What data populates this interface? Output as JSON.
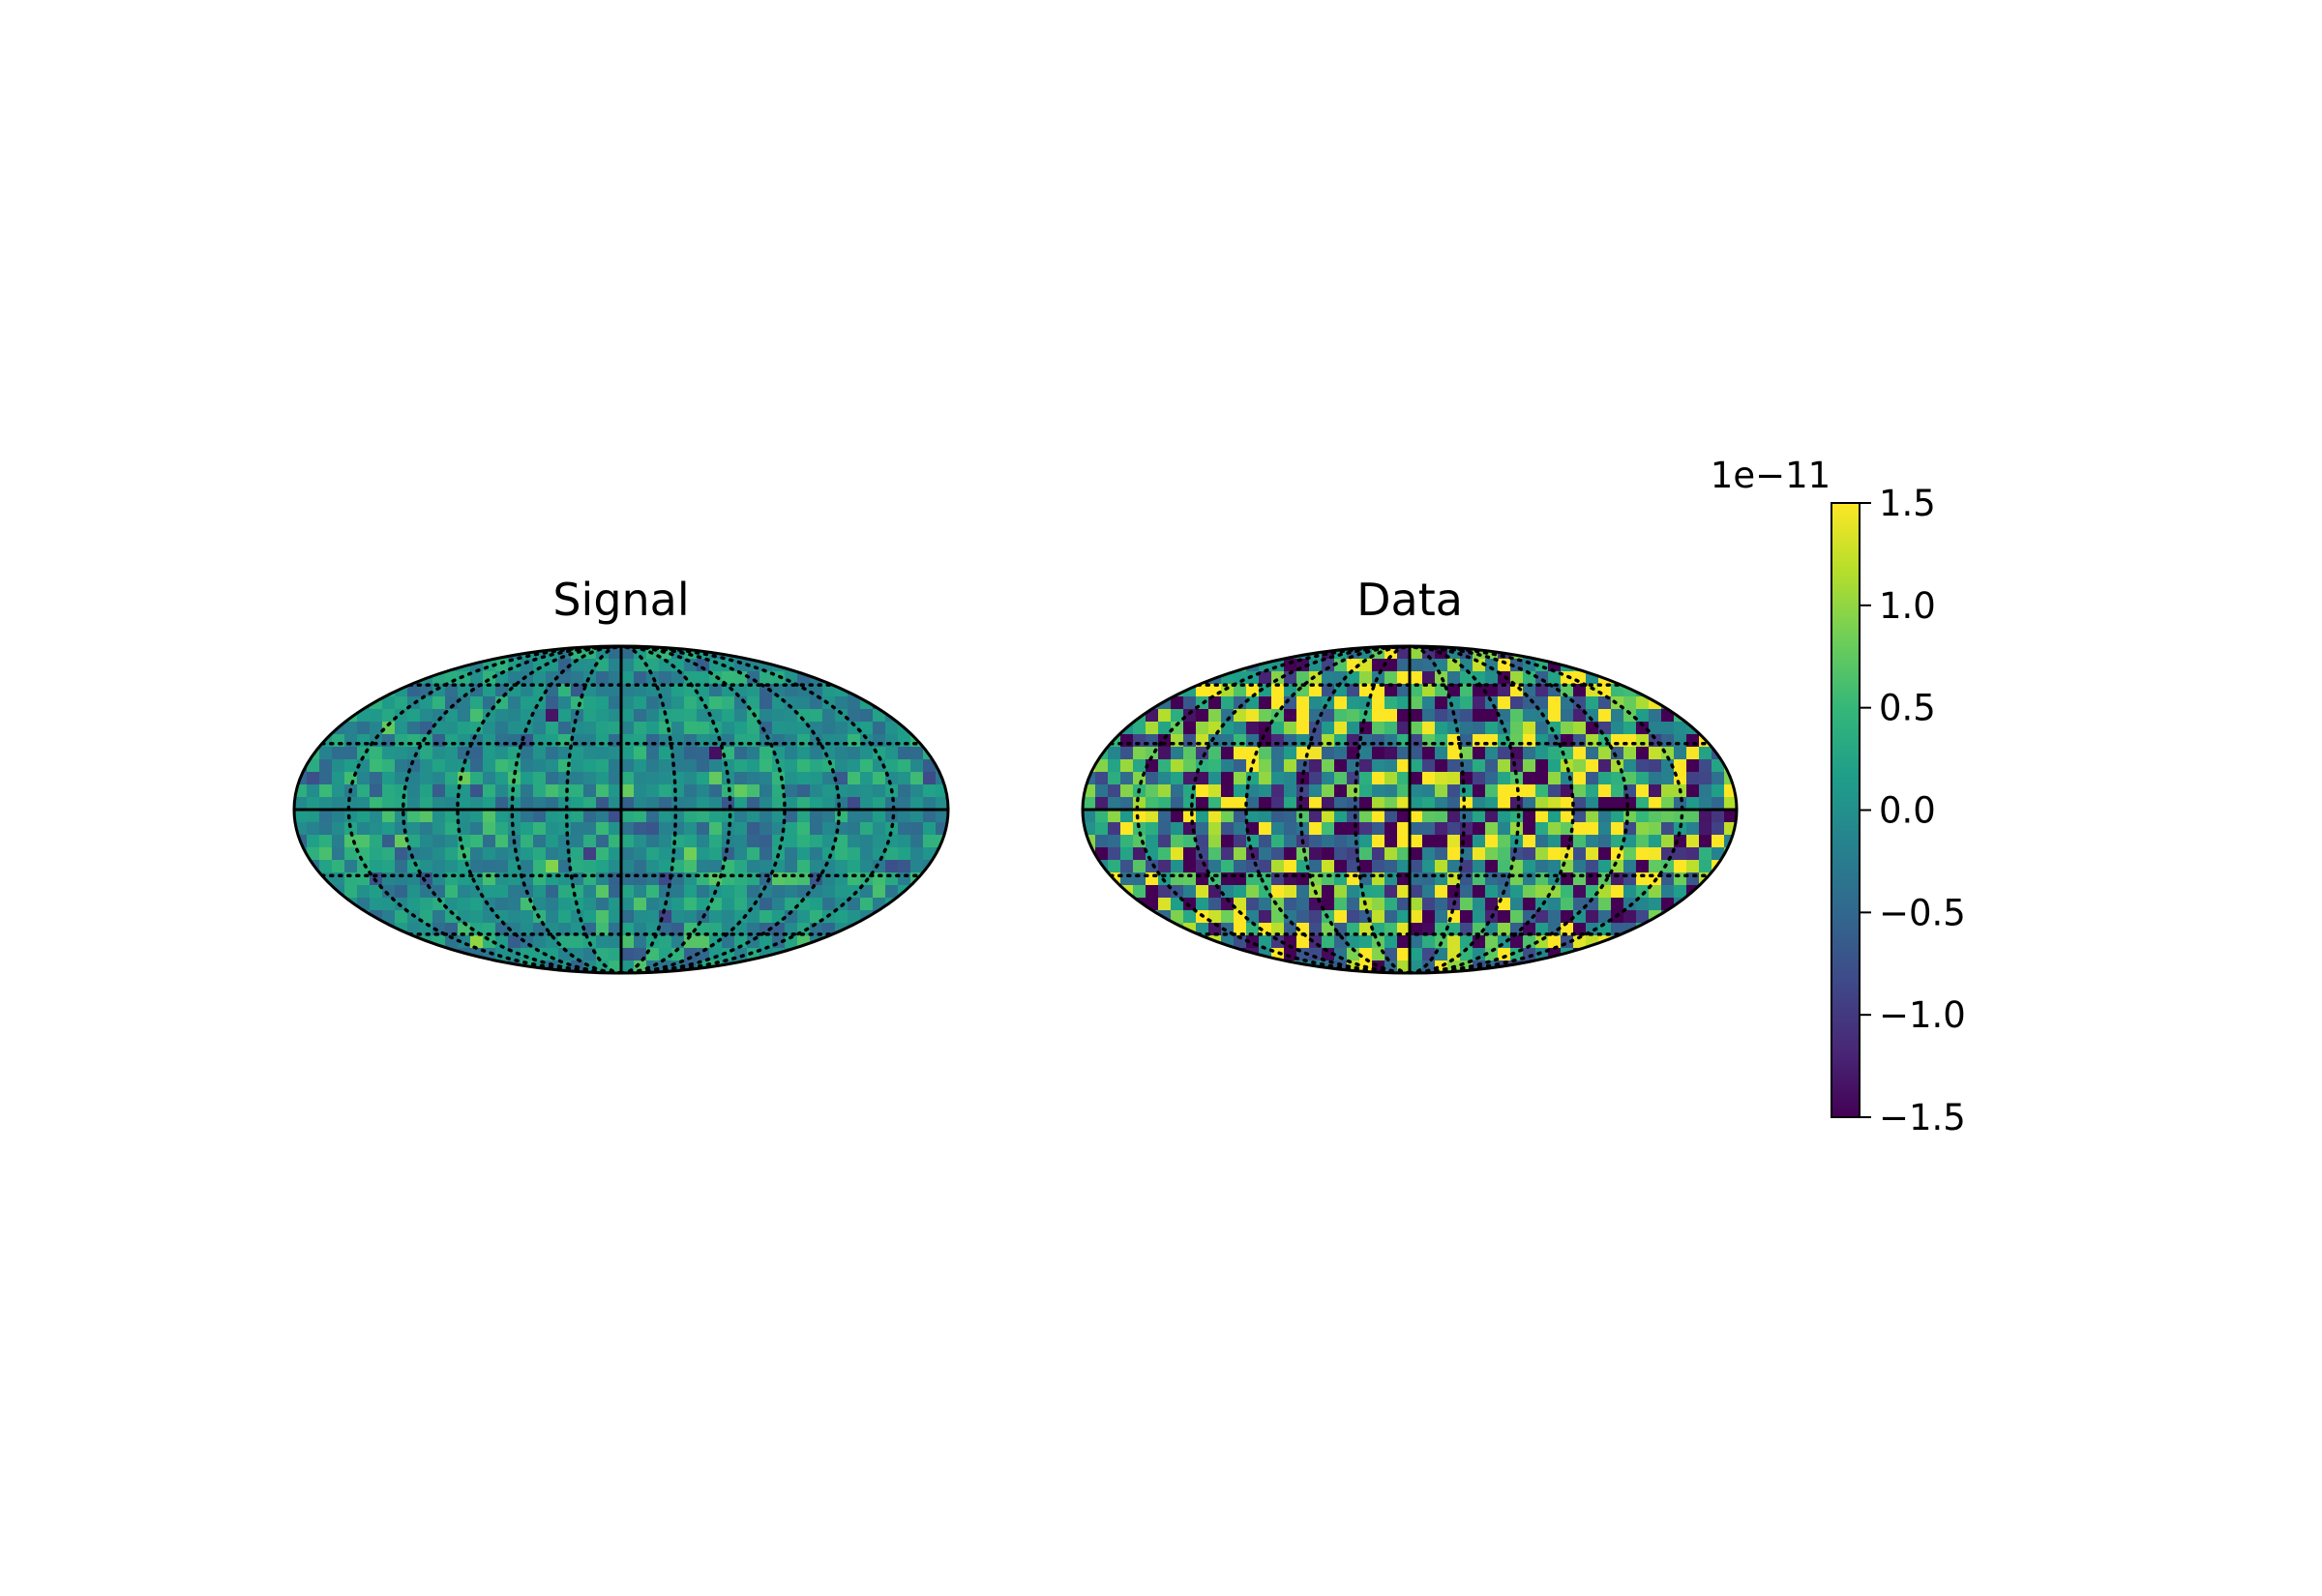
{
  "chart_data": {
    "type": "heatmap",
    "projection": "mollweide",
    "grid": true,
    "colormap": "viridis",
    "colormap_stops": [
      "#440154",
      "#482878",
      "#3e4a89",
      "#31688e",
      "#26828e",
      "#1f9e89",
      "#35b779",
      "#6ece58",
      "#b5de2b",
      "#fde725"
    ],
    "panels": [
      {
        "title": "Signal",
        "value_distribution": "gaussian",
        "std": 0.33
      },
      {
        "title": "Data",
        "value_distribution": "gaussian",
        "std": 1.2
      }
    ],
    "colorbar": {
      "location": "right",
      "range": [
        -1.5,
        1.5
      ],
      "offset_text": "1e−11",
      "ticks": [
        {
          "value": 1.5,
          "label": "1.5"
        },
        {
          "value": 1.0,
          "label": "1.0"
        },
        {
          "value": 0.5,
          "label": "0.5"
        },
        {
          "value": 0.0,
          "label": "0.0"
        },
        {
          "value": -0.5,
          "label": "−0.5"
        },
        {
          "value": -1.0,
          "label": "−1.0"
        },
        {
          "value": -1.5,
          "label": "−1.5"
        }
      ]
    }
  }
}
